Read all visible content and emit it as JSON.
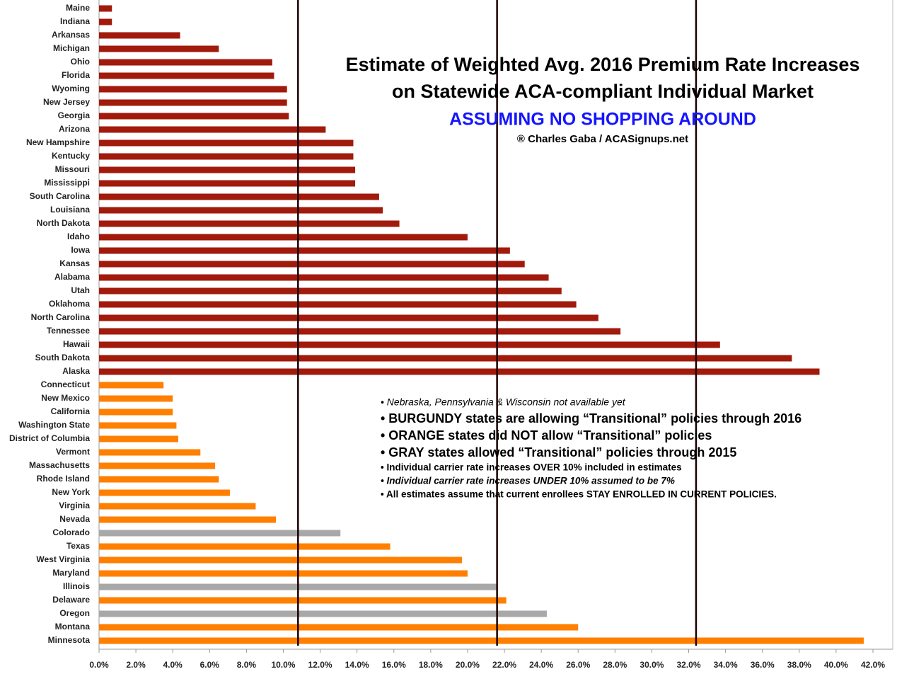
{
  "chart_data": {
    "type": "hbar",
    "title_lines": [
      "Estimate of Weighted Avg. 2016 Premium Rate Increases",
      "on Statewide ACA-compliant Individual Market"
    ],
    "subtitle": "ASSUMING NO SHOPPING AROUND",
    "credit": "® Charles Gaba / ACASignups.net",
    "notes": [
      "• Nebraska, Pennsylvania & Wisconsin not available yet",
      "• BURGUNDY states are allowing “Transitional” policies through 2016",
      "• ORANGE states did NOT allow “Transitional” policies",
      "• GRAY states allowed “Transitional” policies through 2015",
      "• Individual carrier rate increases OVER 10% included in estimates",
      "• Individual carrier rate increases UNDER 10% assumed to be 7%",
      "• All estimates assume that current enrollees STAY ENROLLED IN CURRENT POLICIES."
    ],
    "categories": [
      "Maine",
      "Indiana",
      "Arkansas",
      "Michigan",
      "Ohio",
      "Florida",
      "Wyoming",
      "New Jersey",
      "Georgia",
      "Arizona",
      "New Hampshire",
      "Kentucky",
      "Missouri",
      "Mississippi",
      "South Carolina",
      "Louisiana",
      "North Dakota",
      "Idaho",
      "Iowa",
      "Kansas",
      "Alabama",
      "Utah",
      "Oklahoma",
      "North Carolina",
      "Tennessee",
      "Hawaii",
      "South Dakota",
      "Alaska",
      "Connecticut",
      "New Mexico",
      "California",
      "Washington State",
      "District of Columbia",
      "Vermont",
      "Massachusetts",
      "Rhode Island",
      "New York",
      "Virginia",
      "Nevada",
      "Colorado",
      "Texas",
      "West Virginia",
      "Maryland",
      "Illinois",
      "Delaware",
      "Oregon",
      "Montana",
      "Minnesota"
    ],
    "values": [
      0.7,
      0.7,
      4.4,
      6.5,
      9.4,
      9.5,
      10.2,
      10.2,
      10.3,
      12.3,
      13.8,
      13.8,
      13.9,
      13.9,
      15.2,
      15.4,
      16.3,
      20.0,
      22.3,
      23.1,
      24.4,
      25.1,
      25.9,
      27.1,
      28.3,
      33.7,
      37.6,
      39.1,
      3.5,
      4.0,
      4.0,
      4.2,
      4.3,
      5.5,
      6.3,
      6.5,
      7.1,
      8.5,
      9.6,
      13.1,
      15.8,
      19.7,
      20.0,
      21.6,
      22.1,
      24.3,
      26.0,
      41.5
    ],
    "colors": [
      "#a11a0c",
      "#a11a0c",
      "#a11a0c",
      "#a11a0c",
      "#a11a0c",
      "#a11a0c",
      "#a11a0c",
      "#a11a0c",
      "#a11a0c",
      "#a11a0c",
      "#a11a0c",
      "#a11a0c",
      "#a11a0c",
      "#a11a0c",
      "#a11a0c",
      "#a11a0c",
      "#a11a0c",
      "#a11a0c",
      "#a11a0c",
      "#a11a0c",
      "#a11a0c",
      "#a11a0c",
      "#a11a0c",
      "#a11a0c",
      "#a11a0c",
      "#a11a0c",
      "#a11a0c",
      "#a11a0c",
      "#ff8000",
      "#ff8000",
      "#ff8000",
      "#ff8000",
      "#ff8000",
      "#ff8000",
      "#ff8000",
      "#ff8000",
      "#ff8000",
      "#ff8000",
      "#ff8000",
      "#a8a8a8",
      "#ff8000",
      "#ff8000",
      "#ff8000",
      "#a8a8a8",
      "#ff8000",
      "#a8a8a8",
      "#ff8000",
      "#ff8000"
    ],
    "reference_lines": [
      10.8,
      21.6,
      32.4
    ],
    "xlim": [
      0,
      42
    ],
    "xticks": [
      {
        "value": 0,
        "label": "0.0%"
      },
      {
        "value": 2,
        "label": "2.0%"
      },
      {
        "value": 4,
        "label": "4.0%"
      },
      {
        "value": 6,
        "label": "6.0%"
      },
      {
        "value": 8,
        "label": "8.0%"
      },
      {
        "value": 10,
        "label": "10.0%"
      },
      {
        "value": 12,
        "label": "12.0%"
      },
      {
        "value": 14,
        "label": "14.0%"
      },
      {
        "value": 16,
        "label": "16.0%"
      },
      {
        "value": 18,
        "label": "18.0%"
      },
      {
        "value": 20,
        "label": "20.0%"
      },
      {
        "value": 22,
        "label": "22.0%"
      },
      {
        "value": 24,
        "label": "24.0%"
      },
      {
        "value": 26,
        "label": "26.0%"
      },
      {
        "value": 28,
        "label": "28.0%"
      },
      {
        "value": 30,
        "label": "30.0%"
      },
      {
        "value": 32,
        "label": "32.0%"
      },
      {
        "value": 34,
        "label": "34.0%"
      },
      {
        "value": 36,
        "label": "36.0%"
      },
      {
        "value": 38,
        "label": "38.0%"
      },
      {
        "value": 40,
        "label": "40.0%"
      },
      {
        "value": 42,
        "label": "42.0%"
      }
    ]
  }
}
